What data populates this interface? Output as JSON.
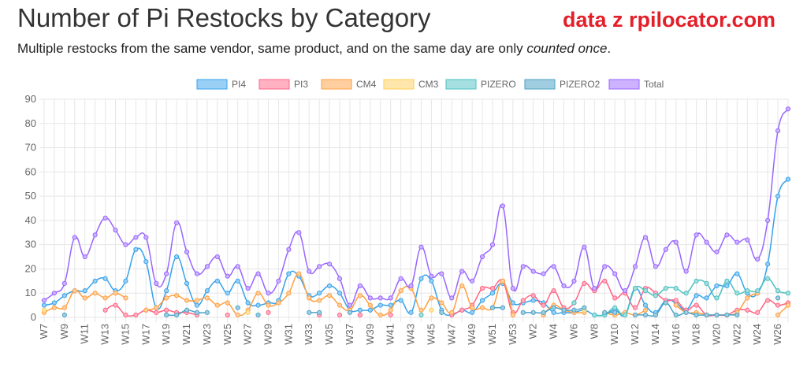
{
  "header": {
    "title": "Number of Pi Restocks by Category",
    "source": "data z rpilocator.com",
    "subtitle_start": "Multiple restocks from the same vendor, same product, and on the same day are only ",
    "subtitle_em": "counted once",
    "subtitle_end": "."
  },
  "chart_data": {
    "type": "line",
    "ylim": [
      0,
      90
    ],
    "yticks": [
      0,
      10,
      20,
      30,
      40,
      50,
      60,
      70,
      80,
      90
    ],
    "grid": true,
    "legend_position": "top-center",
    "x": [
      "W7",
      "W8",
      "W9",
      "W10",
      "W11",
      "W12",
      "W13",
      "W14",
      "W15",
      "W16",
      "W17",
      "W18",
      "W19",
      "W20",
      "W21",
      "W22",
      "W23",
      "W24",
      "W25",
      "W26",
      "W27",
      "W28",
      "W29",
      "W30",
      "W31",
      "W32",
      "W33",
      "W34",
      "W35",
      "W36",
      "W37",
      "W38",
      "W39",
      "W40",
      "W41",
      "W42",
      "W43",
      "W44",
      "W45",
      "W46",
      "W47",
      "W48",
      "W49",
      "W50",
      "W51",
      "W52",
      "W53",
      "W1",
      "W2",
      "W3",
      "W4",
      "W5",
      "W6",
      "W7",
      "W8",
      "W9",
      "W10",
      "W11",
      "W12",
      "W13",
      "W14",
      "W15",
      "W16",
      "W17",
      "W18",
      "W19",
      "W20",
      "W21",
      "W22",
      "W23",
      "W24",
      "W25",
      "W26",
      "W27"
    ],
    "x_tick_labels": [
      "W7",
      "",
      "W9",
      "",
      "W11",
      "",
      "W13",
      "",
      "W15",
      "",
      "W17",
      "",
      "W19",
      "",
      "W21",
      "",
      "W23",
      "",
      "W25",
      "",
      "W27",
      "",
      "W29",
      "",
      "W31",
      "",
      "W33",
      "",
      "W35",
      "",
      "W37",
      "",
      "W39",
      "",
      "W41",
      "",
      "W43",
      "",
      "W45",
      "",
      "W47",
      "",
      "W49",
      "",
      "W51",
      "",
      "W53",
      "",
      "W2",
      "",
      "W4",
      "",
      "W6",
      "",
      "W8",
      "",
      "W10",
      "",
      "W12",
      "",
      "W14",
      "",
      "W16",
      "",
      "W18",
      "",
      "W20",
      "",
      "W22",
      "",
      "W24",
      "",
      "W26",
      ""
    ],
    "series": [
      {
        "name": "PI4",
        "color": "#36a2eb",
        "fill": "#9ad0f5",
        "values": [
          5,
          6,
          9,
          11,
          11,
          15,
          16,
          11,
          15,
          28,
          23,
          4,
          11,
          25,
          14,
          5,
          11,
          15,
          10,
          15,
          6,
          5,
          6,
          7,
          18,
          17,
          9,
          10,
          13,
          10,
          3,
          3,
          3,
          5,
          5,
          7,
          2,
          16,
          15,
          3,
          1,
          3,
          2,
          7,
          10,
          14,
          6,
          6,
          7,
          6,
          2,
          2,
          2,
          3,
          1,
          1,
          3,
          1,
          12,
          5,
          2,
          7,
          6,
          3,
          9,
          8,
          13,
          13,
          18,
          10,
          10,
          22,
          50,
          57
        ]
      },
      {
        "name": "PI3",
        "color": "#ff6384",
        "fill": "#ffb1c1",
        "values": [
          null,
          null,
          null,
          null,
          null,
          null,
          3,
          5,
          1,
          1,
          3,
          2,
          3,
          2,
          2,
          1,
          null,
          null,
          1,
          null,
          null,
          null,
          2,
          null,
          null,
          null,
          null,
          1,
          null,
          1,
          null,
          1,
          null,
          null,
          1,
          null,
          null,
          null,
          null,
          null,
          1,
          3,
          5,
          12,
          12,
          15,
          2,
          7,
          9,
          5,
          11,
          4,
          6,
          14,
          11,
          15,
          8,
          10,
          4,
          12,
          10,
          7,
          7,
          3,
          5,
          1,
          1,
          1,
          3,
          3,
          2,
          7,
          5,
          6
        ]
      },
      {
        "name": "CM4",
        "color": "#ff9f40",
        "fill": "#ffcf9f",
        "values": [
          2,
          4,
          4,
          11,
          8,
          10,
          8,
          10,
          8,
          null,
          3,
          4,
          8,
          9,
          7,
          7,
          8,
          5,
          6,
          1,
          3,
          10,
          5,
          6,
          10,
          18,
          8,
          7,
          9,
          5,
          3,
          9,
          5,
          1,
          3,
          11,
          12,
          3,
          8,
          6,
          2,
          13,
          4,
          4,
          4,
          15,
          1,
          null,
          null,
          1,
          5,
          3,
          2,
          2,
          null,
          2,
          1,
          2,
          1,
          3,
          null,
          null,
          5,
          2,
          2,
          1,
          null,
          1,
          2,
          8,
          10,
          null,
          1,
          5
        ]
      },
      {
        "name": "CM3",
        "color": "#ffcd56",
        "fill": "#ffe6aa",
        "values": [
          3,
          null,
          null,
          null,
          null,
          null,
          null,
          null,
          null,
          null,
          null,
          null,
          null,
          null,
          null,
          null,
          null,
          null,
          null,
          null,
          2,
          null,
          null,
          null,
          null,
          null,
          null,
          null,
          null,
          null,
          null,
          null,
          null,
          null,
          null,
          null,
          null,
          null,
          3,
          null,
          null,
          null,
          null,
          null,
          null,
          null,
          null,
          null,
          null,
          null,
          null,
          null,
          null,
          3,
          null,
          null,
          null,
          null,
          null,
          null,
          null,
          null,
          null,
          null,
          null,
          null,
          null,
          null,
          null,
          null,
          null,
          null,
          null,
          null
        ]
      },
      {
        "name": "PIZERO",
        "color": "#4bc0c0",
        "fill": "#a5dfdf",
        "values": [
          null,
          null,
          null,
          null,
          null,
          null,
          null,
          null,
          null,
          null,
          null,
          null,
          null,
          null,
          null,
          null,
          null,
          null,
          null,
          null,
          null,
          null,
          null,
          null,
          null,
          null,
          null,
          null,
          null,
          null,
          null,
          null,
          null,
          null,
          null,
          null,
          null,
          1,
          null,
          null,
          null,
          null,
          null,
          null,
          null,
          null,
          null,
          null,
          null,
          null,
          null,
          null,
          6,
          null,
          1,
          1,
          4,
          1,
          12,
          11,
          9,
          12,
          12,
          10,
          15,
          14,
          8,
          15,
          10,
          11,
          11,
          16,
          11,
          10
        ]
      },
      {
        "name": "PIZERO2",
        "color": "#4aa3c7",
        "fill": "#a0cde0",
        "values": [
          null,
          null,
          1,
          null,
          null,
          null,
          null,
          null,
          null,
          null,
          null,
          null,
          1,
          1,
          3,
          2,
          2,
          null,
          null,
          4,
          null,
          1,
          null,
          null,
          null,
          null,
          2,
          2,
          null,
          null,
          2,
          null,
          null,
          null,
          null,
          null,
          null,
          null,
          null,
          2,
          null,
          null,
          null,
          null,
          4,
          4,
          null,
          2,
          2,
          2,
          4,
          3,
          3,
          4,
          null,
          2,
          2,
          null,
          1,
          1,
          1,
          6,
          1,
          2,
          1,
          1,
          1,
          1,
          1,
          null,
          null,
          null,
          8,
          null
        ]
      },
      {
        "name": "Total",
        "color": "#9966ff",
        "fill": "#ccb2ff",
        "values": [
          7,
          10,
          14,
          33,
          25,
          34,
          41,
          36,
          30,
          33,
          33,
          14,
          18,
          39,
          27,
          18,
          21,
          25,
          17,
          21,
          12,
          18,
          10,
          15,
          28,
          35,
          19,
          21,
          22,
          16,
          5,
          13,
          8,
          8,
          8,
          16,
          13,
          29,
          17,
          18,
          8,
          19,
          15,
          25,
          30,
          46,
          12,
          21,
          19,
          18,
          21,
          13,
          15,
          29,
          12,
          21,
          18,
          11,
          21,
          33,
          21,
          28,
          31,
          19,
          34,
          31,
          27,
          34,
          31,
          32,
          24,
          40,
          77,
          86
        ]
      }
    ]
  }
}
